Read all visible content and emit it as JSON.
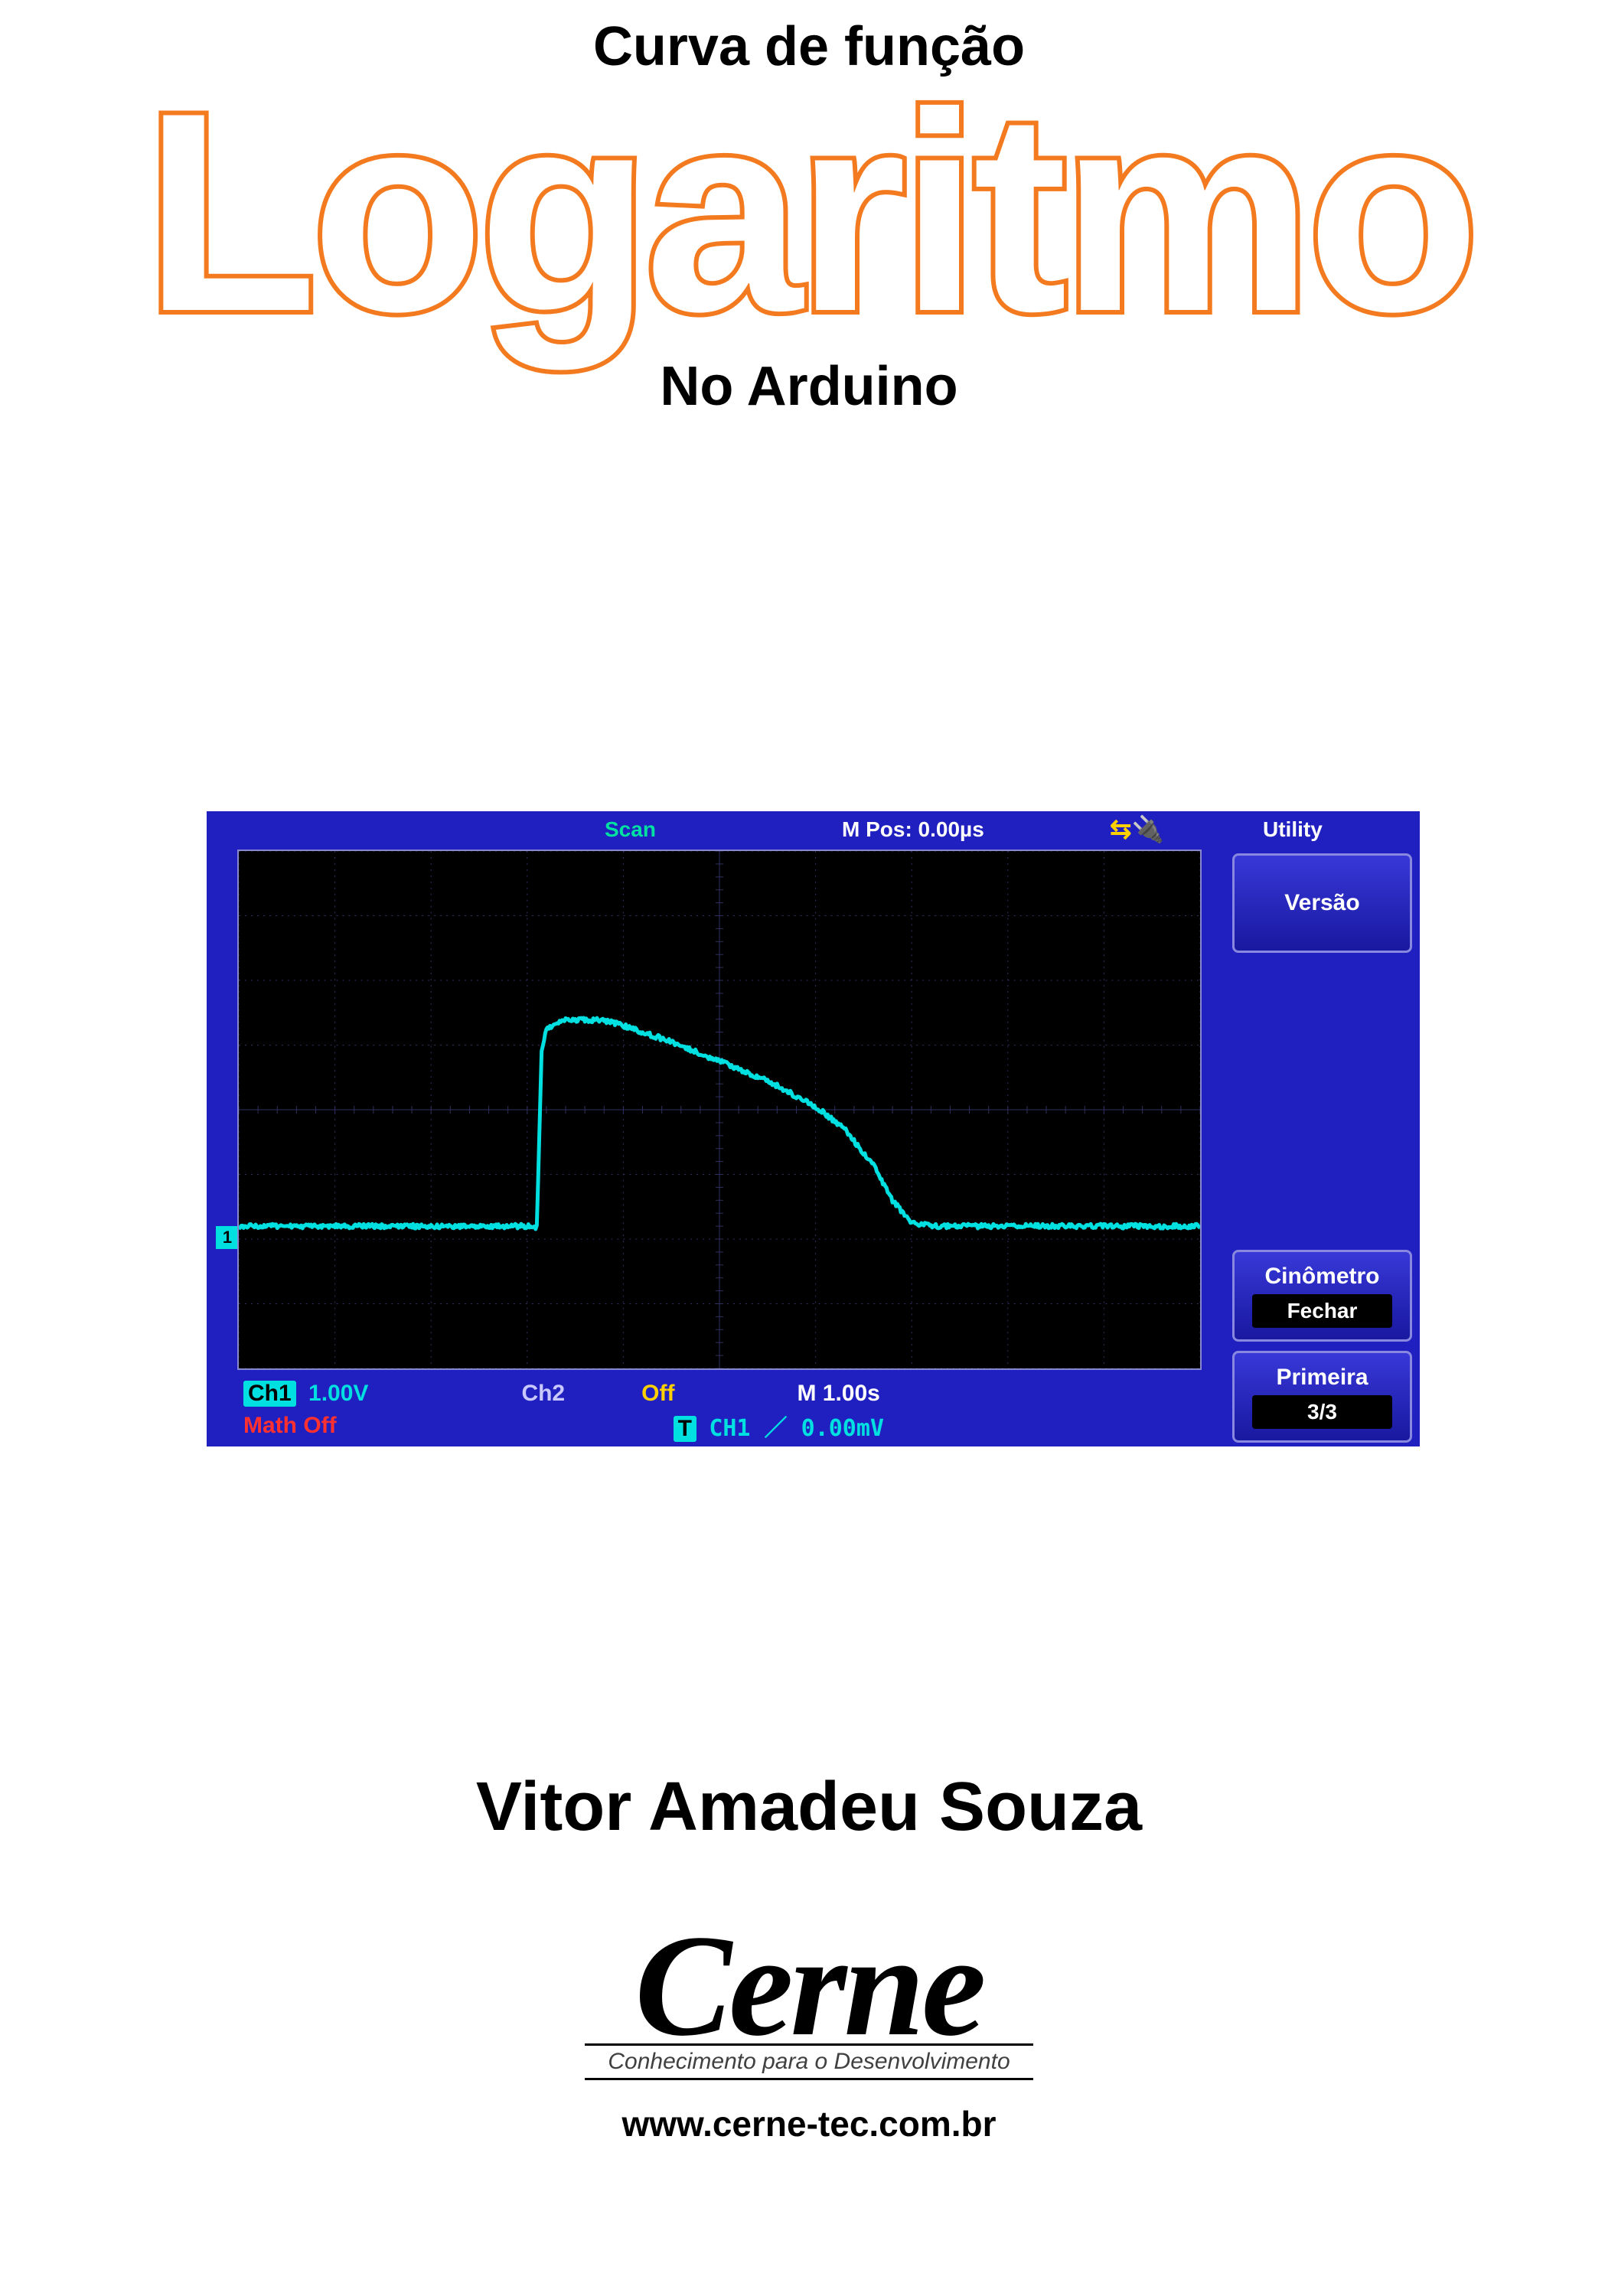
{
  "title": {
    "pre": "Curva de função",
    "main": "Logaritmo",
    "sub": "No Arduino",
    "main_stroke_color": "#f47a20",
    "main_fill_color": "#ffffff",
    "text_color": "#000000",
    "pre_fontsize": 72,
    "main_fontsize": 370,
    "sub_fontsize": 72
  },
  "oscilloscope": {
    "bg_color": "#2020c0",
    "screen_bg": "#000000",
    "grid_color": "#303060",
    "grid_cols": 10,
    "grid_rows": 8,
    "border_color": "#8888d0",
    "top_bar": {
      "scan": "Scan",
      "scan_color": "#00e0a0",
      "mpos": "M Pos: 0.00µs",
      "mpos_color": "#ffffff",
      "usb_icon_color": "#ffd000",
      "utility": "Utility",
      "utility_color": "#ffffff"
    },
    "side": {
      "versao": "Versão",
      "cinometro": "Cinômetro",
      "fechar": "Fechar",
      "primeira": "Primeira",
      "page": "3/3",
      "box_border": "#8888e0",
      "box_bg_top": "#3838d8",
      "box_bg_bottom": "#1818a0",
      "btn_bg": "#000000",
      "text_color": "#ffffff"
    },
    "channel_marker": {
      "label": "1",
      "color": "#00e0e0",
      "y_div": 5.8
    },
    "bottom": {
      "ch1_label": "Ch1",
      "ch1_value": "1.00V",
      "ch1_color": "#00e0e0",
      "ch2_label": "Ch2",
      "ch2_value": "Off",
      "ch2_label_color": "#c8c8ff",
      "off_color": "#ffd000",
      "m_value": "M 1.00s",
      "m_color": "#ffffff",
      "math_label": "Math Off",
      "math_color": "#ff3030",
      "trig_box": "T",
      "trig_text": "CH1 ／ 0.00mV",
      "trig_color": "#00e0e0"
    },
    "waveform": {
      "color": "#00e0e0",
      "stroke_width": 5,
      "noise_amp": 3,
      "baseline_div": 5.8,
      "points": [
        {
          "x": 0.0,
          "y": 5.8
        },
        {
          "x": 0.3,
          "y": 5.8
        },
        {
          "x": 0.31,
          "y": 5.82
        },
        {
          "x": 0.315,
          "y": 3.1
        },
        {
          "x": 0.32,
          "y": 2.75
        },
        {
          "x": 0.34,
          "y": 2.6
        },
        {
          "x": 0.38,
          "y": 2.62
        },
        {
          "x": 0.4,
          "y": 2.7
        },
        {
          "x": 0.45,
          "y": 2.95
        },
        {
          "x": 0.5,
          "y": 3.25
        },
        {
          "x": 0.55,
          "y": 3.55
        },
        {
          "x": 0.6,
          "y": 3.95
        },
        {
          "x": 0.63,
          "y": 4.3
        },
        {
          "x": 0.66,
          "y": 4.85
        },
        {
          "x": 0.68,
          "y": 5.4
        },
        {
          "x": 0.7,
          "y": 5.75
        },
        {
          "x": 0.72,
          "y": 5.8
        },
        {
          "x": 1.0,
          "y": 5.8
        }
      ]
    }
  },
  "author": {
    "name": "Vitor Amadeu Souza",
    "fontsize": 90,
    "color": "#000000"
  },
  "logo": {
    "brand": "Cerne",
    "tagline": "Conhecimento para o Desenvolvimento",
    "url": "www.cerne-tec.com.br",
    "brand_color": "#000000",
    "tagline_color": "#404040"
  }
}
